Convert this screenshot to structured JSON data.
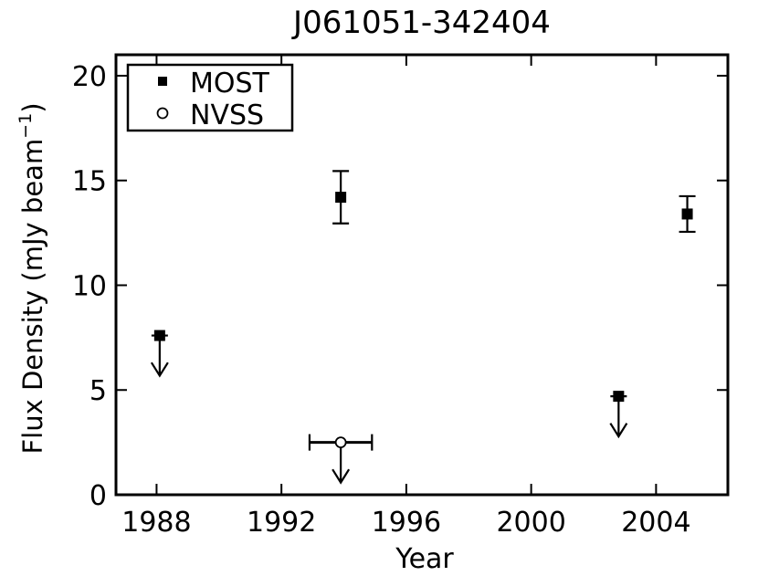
{
  "chart_data": {
    "type": "scatter",
    "title": "J061051-342404",
    "xlabel": "Year",
    "ylabel": "Flux Density (mJy beam",
    "ylabel_sup": "−1",
    "ylabel_close": ")",
    "xlim": [
      1986.7,
      2006.3
    ],
    "ylim": [
      0,
      21
    ],
    "xticks": [
      1988,
      1992,
      1996,
      2000,
      2004
    ],
    "yticks": [
      0,
      5,
      10,
      15,
      20
    ],
    "grid": false,
    "legend_placement": "top-left",
    "series": [
      {
        "name": "MOST",
        "marker": "square",
        "points": [
          {
            "x": 1988.1,
            "y": 7.6,
            "upper_limit": true
          },
          {
            "x": 1993.9,
            "y": 14.2,
            "yerr": 1.25
          },
          {
            "x": 2002.8,
            "y": 4.7,
            "upper_limit": true
          },
          {
            "x": 2005.0,
            "y": 13.4,
            "yerr": 0.85
          }
        ]
      },
      {
        "name": "NVSS",
        "marker": "circle-open",
        "points": [
          {
            "x": 1993.9,
            "y": 2.5,
            "xerr": 1.0,
            "upper_limit": true
          }
        ]
      }
    ]
  }
}
